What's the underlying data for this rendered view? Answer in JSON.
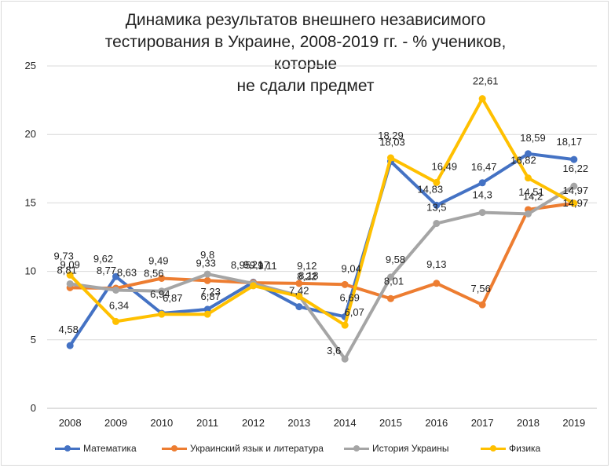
{
  "chart_data": {
    "type": "line",
    "title": "Динамика результатов внешнего независимого\nтестирования в Украине, 2008-2019 гг. - % учеников, которые\nне сдали предмет",
    "xlabel": "",
    "ylabel": "",
    "categories": [
      "2008",
      "2009",
      "2010",
      "2011",
      "2012",
      "2013",
      "2014",
      "2015",
      "2016",
      "2017",
      "2018",
      "2019"
    ],
    "ylim": [
      0,
      25
    ],
    "yticks": [
      "0",
      "5",
      "10",
      "15",
      "20",
      "25"
    ],
    "grid": true,
    "legend_position": "bottom",
    "series": [
      {
        "name": "Математика",
        "color": "#4472c4",
        "values": [
          4.58,
          9.62,
          6.94,
          7.23,
          9.21,
          7.42,
          6.69,
          18.03,
          14.83,
          16.47,
          18.59,
          18.17
        ],
        "labels": [
          "4,58",
          "9,62",
          "6,94",
          "7,23",
          "9,21",
          "7,42",
          "6,69",
          "18,03",
          "14,83",
          "16,47",
          "18,59",
          "18,17"
        ]
      },
      {
        "name": "Украинский язык и литература",
        "color": "#ed7d31",
        "values": [
          8.81,
          8.77,
          9.49,
          9.33,
          9.17,
          9.12,
          9.04,
          8.01,
          9.13,
          7.56,
          14.51,
          14.97
        ],
        "labels": [
          "8,81",
          "8,77",
          "9,49",
          "9,33",
          "9,17",
          "9,12",
          "9,04",
          "8,01",
          "9,13",
          "7,56",
          "14,51",
          "14,97"
        ]
      },
      {
        "name": "История Украины",
        "color": "#a5a5a5",
        "values": [
          9.09,
          8.63,
          8.56,
          9.8,
          9.11,
          8.22,
          3.6,
          9.58,
          13.5,
          14.3,
          14.2,
          16.22
        ],
        "labels": [
          "9,09",
          "8,63",
          "8,56",
          "9,8",
          "9,11",
          "8,22",
          "3,6",
          "9,58",
          "13,5",
          "14,3",
          "14,2",
          "16,22"
        ]
      },
      {
        "name": "Физика",
        "color": "#ffc000",
        "values": [
          9.73,
          6.34,
          6.87,
          6.87,
          8.95,
          8.18,
          6.07,
          18.29,
          16.49,
          22.61,
          16.82,
          14.97
        ],
        "labels": [
          "9,73",
          "6,34",
          "6,87",
          "6,87",
          "8,95",
          "8,18",
          "6,07",
          "18,29",
          "16,49",
          "22,61",
          "16,82",
          "14,97"
        ]
      }
    ]
  }
}
